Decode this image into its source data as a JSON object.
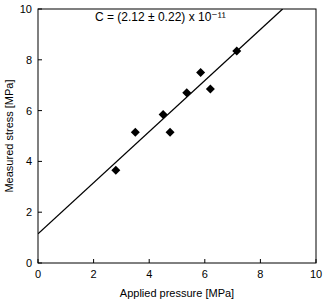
{
  "chart_data": {
    "type": "scatter",
    "annotation": "C = (2.12 ± 0.22) x 10⁻¹¹",
    "x_label": "Applied pressure [MPa]",
    "y_label": "Measured stress [MPa]",
    "xlim": [
      0,
      10
    ],
    "xticks": [
      0,
      2,
      4,
      6,
      8,
      10
    ],
    "ylim": [
      0,
      10
    ],
    "yticks": [
      0,
      2,
      4,
      6,
      8,
      10
    ],
    "grid": false,
    "series": [
      {
        "type": "scatter",
        "marker": "diamond",
        "color": "#000000",
        "x": [
          2.8,
          3.5,
          4.5,
          4.75,
          5.35,
          5.85,
          6.2,
          7.15
        ],
        "values": [
          3.65,
          5.15,
          5.85,
          5.15,
          6.7,
          7.5,
          6.85,
          8.35
        ]
      },
      {
        "type": "line",
        "line_style": "solid",
        "color": "#000000",
        "x": [
          0,
          8.8
        ],
        "values": [
          1.15,
          10
        ]
      }
    ]
  }
}
